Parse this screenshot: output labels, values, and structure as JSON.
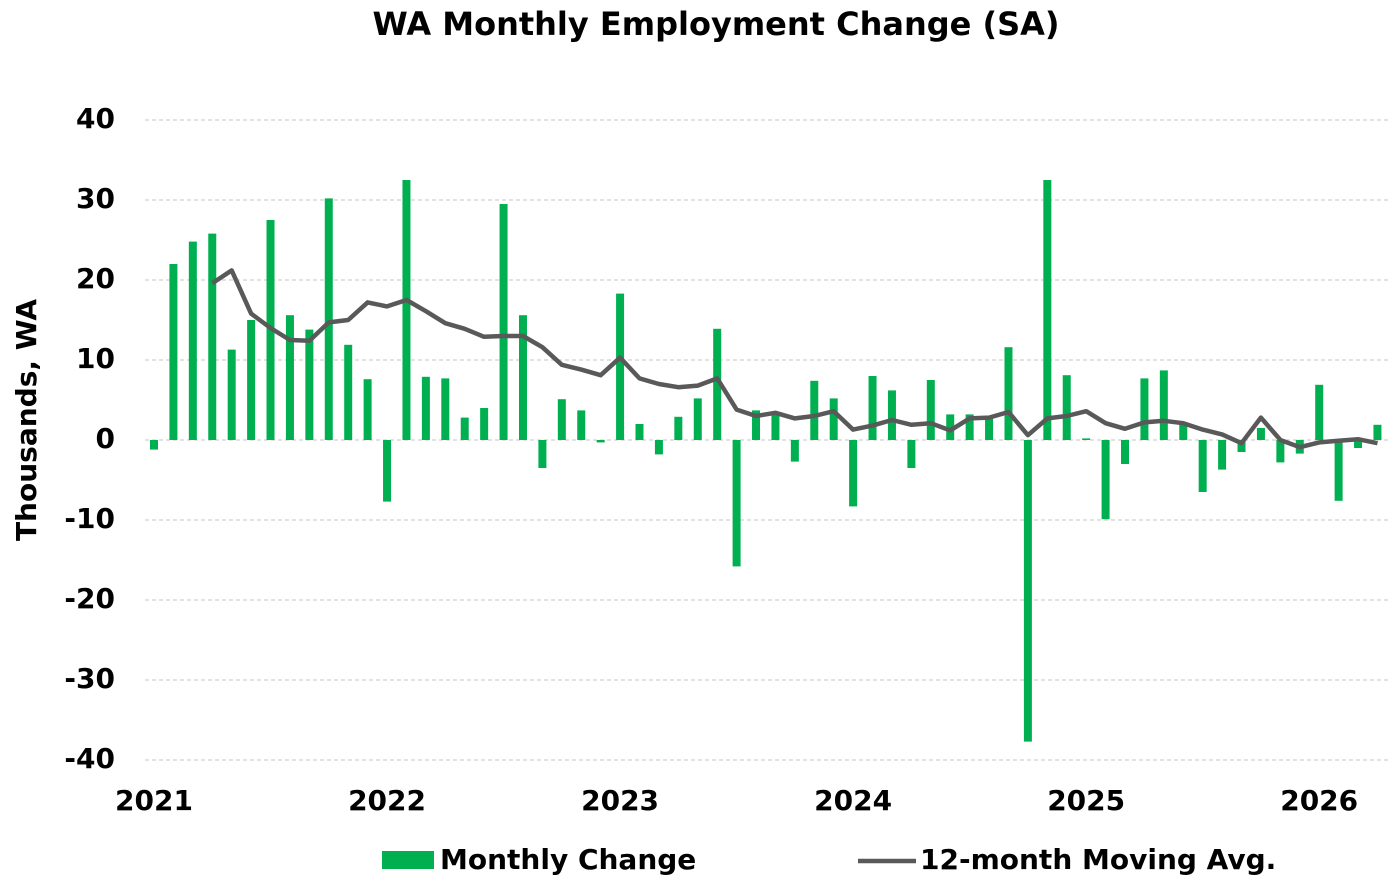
{
  "chart_data": {
    "type": "bar_line",
    "title": "WA Monthly Employment Change (SA)",
    "y_label": "Thousands, WA",
    "categories": [
      "2021",
      null,
      null,
      null,
      null,
      null,
      null,
      null,
      null,
      null,
      null,
      null,
      "2022",
      null,
      null,
      null,
      null,
      null,
      null,
      null,
      null,
      null,
      null,
      null,
      "2023",
      null,
      null,
      null,
      null,
      null,
      null,
      null,
      null,
      null,
      null,
      null,
      "2024",
      null,
      null,
      null,
      null,
      null,
      null,
      null,
      null,
      null,
      null,
      null,
      "2025",
      null,
      null,
      null,
      null,
      null,
      null,
      null,
      null,
      null,
      null,
      null,
      "2026",
      null,
      null,
      null
    ],
    "series": [
      {
        "name": "Monthly Change",
        "type": "bar",
        "color": "#00b050",
        "values": [
          -1.2,
          22,
          24.8,
          25.8,
          11.3,
          15,
          27.5,
          15.6,
          13.8,
          30.2,
          11.9,
          7.6,
          -7.7,
          32.5,
          7.9,
          7.7,
          2.8,
          4,
          29.5,
          15.6,
          -3.5,
          5.1,
          3.7,
          -0.3,
          18.3,
          2,
          -1.8,
          2.9,
          5.2,
          13.9,
          -15.8,
          3.7,
          3.3,
          -2.7,
          7.4,
          5.2,
          -8.3,
          8,
          6.2,
          -3.5,
          7.5,
          3.2,
          3.2,
          3,
          11.6,
          -37.7,
          32.5,
          8.1,
          0.2,
          -9.9,
          -3,
          7.7,
          8.7,
          2.2,
          -6.5,
          -3.7,
          -1.5,
          1.5,
          -2.8,
          -1.7,
          6.9,
          -7.6,
          -1,
          1.9
        ]
      },
      {
        "name": "12-month Moving Avg.",
        "type": "line",
        "color": "#595959",
        "values": [
          null,
          null,
          null,
          19.6,
          21.2,
          15.8,
          14,
          12.5,
          12.4,
          14.7,
          15,
          17.2,
          16.7,
          17.5,
          16.1,
          14.6,
          13.9,
          12.9,
          13,
          13,
          11.6,
          9.4,
          8.8,
          8.1,
          10.3,
          7.7,
          7,
          6.6,
          6.8,
          7.7,
          3.8,
          3,
          3.4,
          2.7,
          3,
          3.6,
          1.3,
          1.8,
          2.5,
          1.9,
          2.1,
          1.2,
          2.7,
          2.8,
          3.5,
          0.6,
          2.7,
          3,
          3.6,
          2.1,
          1.4,
          2.2,
          2.4,
          2.1,
          1.3,
          0.7,
          -0.4,
          2.8,
          0,
          -0.9,
          -0.3,
          -0.1,
          0.1,
          -0.4
        ]
      }
    ],
    "ylim": [
      -40,
      40
    ],
    "yticks": [
      -40,
      -30,
      -20,
      -10,
      0,
      10,
      20,
      30,
      40
    ],
    "grid": true
  }
}
